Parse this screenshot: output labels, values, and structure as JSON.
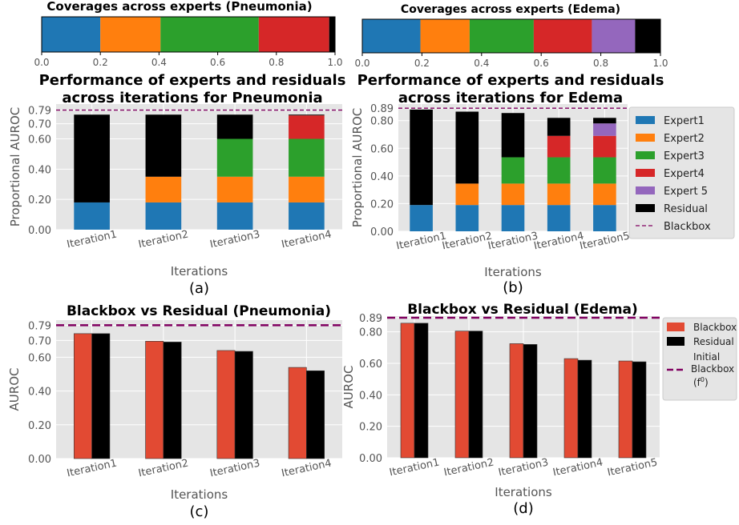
{
  "colors": {
    "expert1": "#1f77b4",
    "expert2": "#ff7f0e",
    "expert3": "#2ca02c",
    "expert4": "#d62728",
    "expert5": "#9467bd",
    "residual": "#000000",
    "blackbox_line": "#800060",
    "ggplot_bg": "#e5e5e5",
    "bar_blackbox": "#e24a33",
    "bar_residual": "#348abd"
  },
  "chart_data": [
    {
      "id": "coverage-pneumonia",
      "type": "bar",
      "orientation": "horizontal-stacked",
      "title": "Coverages across experts (Pneumonia)",
      "segments": [
        {
          "name": "Expert1",
          "value": 0.2
        },
        {
          "name": "Expert2",
          "value": 0.205
        },
        {
          "name": "Expert3",
          "value": 0.335
        },
        {
          "name": "Expert4",
          "value": 0.24
        },
        {
          "name": "Residual",
          "value": 0.02
        }
      ],
      "xlim": [
        0,
        1
      ],
      "xticks": [
        "0.0",
        "0.2",
        "0.4",
        "0.6",
        "0.8",
        "1.0"
      ]
    },
    {
      "id": "coverage-edema",
      "type": "bar",
      "orientation": "horizontal-stacked",
      "title": "Coverages across experts (Edema)",
      "segments": [
        {
          "name": "Expert1",
          "value": 0.195
        },
        {
          "name": "Expert2",
          "value": 0.165
        },
        {
          "name": "Expert3",
          "value": 0.215
        },
        {
          "name": "Expert4",
          "value": 0.195
        },
        {
          "name": "Expert 5",
          "value": 0.145
        },
        {
          "name": "Residual",
          "value": 0.085
        }
      ],
      "xlim": [
        0,
        1
      ],
      "xticks": [
        "0.0",
        "0.2",
        "0.4",
        "0.6",
        "0.8",
        "1.0"
      ]
    },
    {
      "id": "perf-pneumonia",
      "type": "bar",
      "stacked": true,
      "title": "Performance of experts and residuals across iterations for Pneumonia",
      "title_lines": [
        "Performance of experts and residuals",
        "across iterations for Pneumonia"
      ],
      "caption": "(a)",
      "xlabel": "Iterations",
      "ylabel": "Proportional AUROC",
      "categories": [
        "Iteration1",
        "Iteration2",
        "Iteration3",
        "Iteration4"
      ],
      "ylim": [
        0,
        0.83
      ],
      "yticks": [
        "0.00",
        "0.20",
        "0.40",
        "0.60",
        "0.70",
        "0.79"
      ],
      "blackbox_value": 0.79,
      "series": [
        {
          "name": "Expert1",
          "values": [
            0.18,
            0.18,
            0.18,
            0.18
          ]
        },
        {
          "name": "Expert2",
          "values": [
            0,
            0.17,
            0.17,
            0.17
          ]
        },
        {
          "name": "Expert3",
          "values": [
            0,
            0,
            0.25,
            0.25
          ]
        },
        {
          "name": "Expert4",
          "values": [
            0,
            0,
            0,
            0.155
          ]
        },
        {
          "name": "Residual",
          "values": [
            0.58,
            0.41,
            0.16,
            0.005
          ]
        }
      ]
    },
    {
      "id": "perf-edema",
      "type": "bar",
      "stacked": true,
      "title": "Performance of experts and residuals across iterations for Edema",
      "title_lines": [
        "Performance of experts and residuals",
        "across iterations for Edema"
      ],
      "caption": "(b)",
      "xlabel": "Iterations",
      "ylabel": "Proportional AUROC",
      "categories": [
        "Iteration1",
        "Iteration2",
        "Iteration3",
        "Iteration4",
        "Iteration5"
      ],
      "ylim": [
        0,
        0.92
      ],
      "yticks": [
        "0.00",
        "0.20",
        "0.40",
        "0.60",
        "0.80",
        "0.89"
      ],
      "blackbox_value": 0.89,
      "series": [
        {
          "name": "Expert1",
          "values": [
            0.19,
            0.19,
            0.19,
            0.19,
            0.19
          ]
        },
        {
          "name": "Expert2",
          "values": [
            0,
            0.155,
            0.155,
            0.155,
            0.155
          ]
        },
        {
          "name": "Expert3",
          "values": [
            0,
            0,
            0.19,
            0.19,
            0.19
          ]
        },
        {
          "name": "Expert4",
          "values": [
            0,
            0,
            0,
            0.155,
            0.155
          ]
        },
        {
          "name": "Expert 5",
          "values": [
            0,
            0,
            0,
            0,
            0.09
          ]
        },
        {
          "name": "Residual",
          "values": [
            0.69,
            0.52,
            0.32,
            0.13,
            0.04
          ]
        }
      ],
      "legend": {
        "position": "right",
        "entries": [
          "Expert1",
          "Expert2",
          "Expert3",
          "Expert4",
          "Expert 5",
          "Residual",
          "Blackbox"
        ]
      }
    },
    {
      "id": "bb-vs-res-pneumonia",
      "type": "bar",
      "grouped": true,
      "title": "Blackbox vs Residual (Pneumonia)",
      "caption": "(c)",
      "xlabel": "Iterations",
      "ylabel": "AUROC",
      "categories": [
        "Iteration1",
        "Iteration2",
        "Iteration3",
        "Iteration4"
      ],
      "ylim": [
        0,
        0.82
      ],
      "yticks": [
        "0.00",
        "0.20",
        "0.40",
        "0.60",
        "0.70",
        "0.79"
      ],
      "initial_blackbox": 0.79,
      "series": [
        {
          "name": "Blackbox",
          "values": [
            0.74,
            0.695,
            0.64,
            0.54
          ]
        },
        {
          "name": "Residual",
          "values": [
            0.74,
            0.69,
            0.635,
            0.52
          ]
        }
      ]
    },
    {
      "id": "bb-vs-res-edema",
      "type": "bar",
      "grouped": true,
      "title": "Blackbox vs Residual (Edema)",
      "caption": "(d)",
      "xlabel": "Iterations",
      "ylabel": "AUROC",
      "categories": [
        "Iteration1",
        "Iteration2",
        "Iteration3",
        "Iteration4",
        "Iteration5"
      ],
      "ylim": [
        0,
        0.9
      ],
      "yticks": [
        "0.00",
        "0.20",
        "0.40",
        "0.60",
        "0.80",
        "0.89"
      ],
      "initial_blackbox": 0.89,
      "series": [
        {
          "name": "Blackbox",
          "values": [
            0.855,
            0.805,
            0.725,
            0.63,
            0.615
          ]
        },
        {
          "name": "Residual",
          "values": [
            0.855,
            0.805,
            0.72,
            0.62,
            0.61
          ]
        }
      ],
      "legend": {
        "position": "right",
        "entries": [
          "Blackbox",
          "Residual",
          "Initial",
          "Blackbox",
          "(f",
          "0",
          ")"
        ]
      }
    }
  ]
}
